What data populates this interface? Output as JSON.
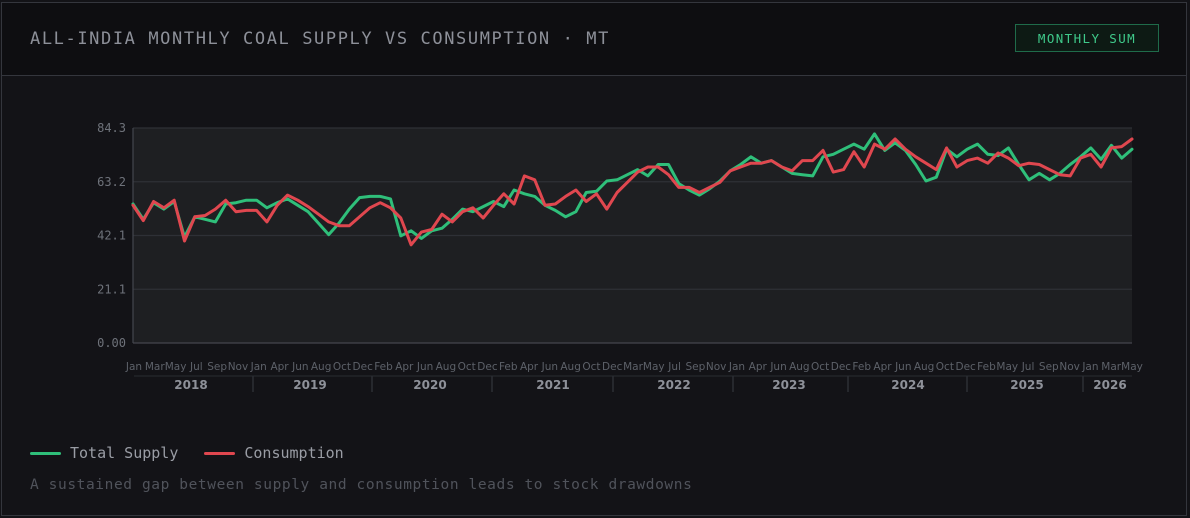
{
  "header": {
    "title": "ALL-INDIA MONTHLY COAL SUPPLY VS CONSUMPTION · MT",
    "badge_label": "MONTHLY SUM"
  },
  "colors": {
    "supply": "#2fbf7a",
    "consumption": "#e0474f"
  },
  "legend": {
    "items": [
      {
        "label": "Total Supply"
      },
      {
        "label": "Consumption"
      }
    ]
  },
  "footnote": "A sustained gap between supply and consumption leads to stock drawdowns",
  "chart_data": {
    "type": "line",
    "title": "",
    "xlabel": "",
    "ylabel": "",
    "ylim": [
      0,
      84.3
    ],
    "y_ticks": [
      "84.3",
      "63.2",
      "42.1",
      "21.1",
      "0.00"
    ],
    "x_month_ticks": [
      "Jan",
      "Mar",
      "May",
      "Jul",
      "Sep",
      "Nov",
      "Jan",
      "Apr",
      "Jun",
      "Aug",
      "Oct",
      "Dec",
      "Feb",
      "Apr",
      "Jun",
      "Aug",
      "Oct",
      "Dec",
      "Feb",
      "Apr",
      "Jun",
      "Aug",
      "Oct",
      "Dec",
      "Mar",
      "May",
      "Jul",
      "Sep",
      "Nov",
      "Jan",
      "Apr",
      "Jun",
      "Aug",
      "Oct",
      "Dec",
      "Feb",
      "Apr",
      "Jun",
      "Aug",
      "Oct",
      "Dec",
      "Feb",
      "May",
      "Jul",
      "Sep",
      "Nov",
      "Jan",
      "Mar",
      "May"
    ],
    "x_year_labels": [
      "2018",
      "2019",
      "2020",
      "2021",
      "2022",
      "2023",
      "2024",
      "2025",
      "2026"
    ],
    "x_range": [
      "2018-01",
      "2026-05"
    ],
    "grid": true,
    "legend_position": "bottom-left",
    "series": [
      {
        "name": "Total Supply",
        "values": [
          54.5,
          48.5,
          55.0,
          52.5,
          55.5,
          41.5,
          49.5,
          48.5,
          47.5,
          54.5,
          55.0,
          56.0,
          56.0,
          53.0,
          55.0,
          56.5,
          54.0,
          51.5,
          47.0,
          42.5,
          47.0,
          52.5,
          57.0,
          57.5,
          57.5,
          56.5,
          42.0,
          44.0,
          41.0,
          44.0,
          45.0,
          48.5,
          52.5,
          51.5,
          53.5,
          55.5,
          53.5,
          60.0,
          58.5,
          57.5,
          54.0,
          52.0,
          49.5,
          51.5,
          59.0,
          59.5,
          63.5,
          64.0,
          66.0,
          68.0,
          65.5,
          70.0,
          70.0,
          62.5,
          60.0,
          58.0,
          60.5,
          63.5,
          67.5,
          70.0,
          73.0,
          70.5,
          71.5,
          69.0,
          66.5,
          66.0,
          65.5,
          73.0,
          74.0,
          76.0,
          78.0,
          76.0,
          82.0,
          75.5,
          78.5,
          75.5,
          70.0,
          63.5,
          65.0,
          76.0,
          73.0,
          76.0,
          78.0,
          74.0,
          73.5,
          76.5,
          70.0,
          64.0,
          66.5,
          64.0,
          66.5,
          70.0,
          73.0,
          76.5,
          72.0,
          77.5,
          72.5,
          76.0
        ],
        "values_2": [
          54.0,
          48.0,
          55.5,
          53.0,
          56.0,
          40.0,
          49.5,
          50.0,
          52.5,
          56.0,
          51.5,
          52.0,
          52.0,
          47.5,
          54.0,
          58.0,
          56.0,
          53.5,
          50.5,
          47.5,
          46.0,
          46.0,
          49.5,
          53.0,
          55.0,
          53.0,
          49.0,
          38.5,
          43.5,
          44.5,
          50.5,
          47.5,
          51.5,
          53.0,
          49.0,
          54.0,
          58.5,
          54.5,
          65.5,
          64.0,
          54.0,
          54.5,
          57.5,
          60.0,
          55.5,
          58.5,
          52.5,
          59.0,
          63.0,
          67.0,
          69.0,
          69.0,
          66.0,
          61.0,
          61.0,
          59.0,
          61.0,
          63.0,
          67.5,
          69.0,
          70.5,
          70.5,
          71.5,
          69.0,
          67.5,
          71.5,
          71.5,
          75.5,
          67.0,
          68.0,
          75.0,
          69.0,
          78.0,
          76.0,
          80.0,
          76.0,
          73.0,
          70.5,
          68.0,
          76.5,
          69.0,
          71.5,
          72.5,
          70.5,
          74.5,
          72.5,
          69.5,
          70.5,
          70.0,
          68.0,
          66.0,
          65.5,
          72.5,
          74.0,
          69.0,
          76.5,
          77.0,
          80.0
        ]
      },
      {
        "name": "Consumption",
        "values": [
          54.0,
          48.0,
          55.5,
          53.0,
          56.0,
          40.0,
          49.5,
          50.0,
          52.5,
          56.0,
          51.5,
          52.0,
          52.0,
          47.5,
          54.0,
          58.0,
          56.0,
          53.5,
          50.5,
          47.5,
          46.0,
          46.0,
          49.5,
          53.0,
          55.0,
          53.0,
          49.0,
          38.5,
          43.5,
          44.5,
          50.5,
          47.5,
          51.5,
          53.0,
          49.0,
          54.0,
          58.5,
          54.5,
          65.5,
          64.0,
          54.0,
          54.5,
          57.5,
          60.0,
          55.5,
          58.5,
          52.5,
          59.0,
          63.0,
          67.0,
          69.0,
          69.0,
          66.0,
          61.0,
          61.0,
          59.0,
          61.0,
          63.0,
          67.5,
          69.0,
          70.5,
          70.5,
          71.5,
          69.0,
          67.5,
          71.5,
          71.5,
          75.5,
          67.0,
          68.0,
          75.0,
          69.0,
          78.0,
          76.0,
          80.0,
          76.0,
          73.0,
          70.5,
          68.0,
          76.5,
          69.0,
          71.5,
          72.5,
          70.5,
          74.5,
          72.5,
          69.5,
          70.5,
          70.0,
          68.0,
          66.0,
          65.5,
          72.5,
          74.0,
          69.0,
          76.5,
          77.0,
          80.0
        ]
      }
    ]
  }
}
